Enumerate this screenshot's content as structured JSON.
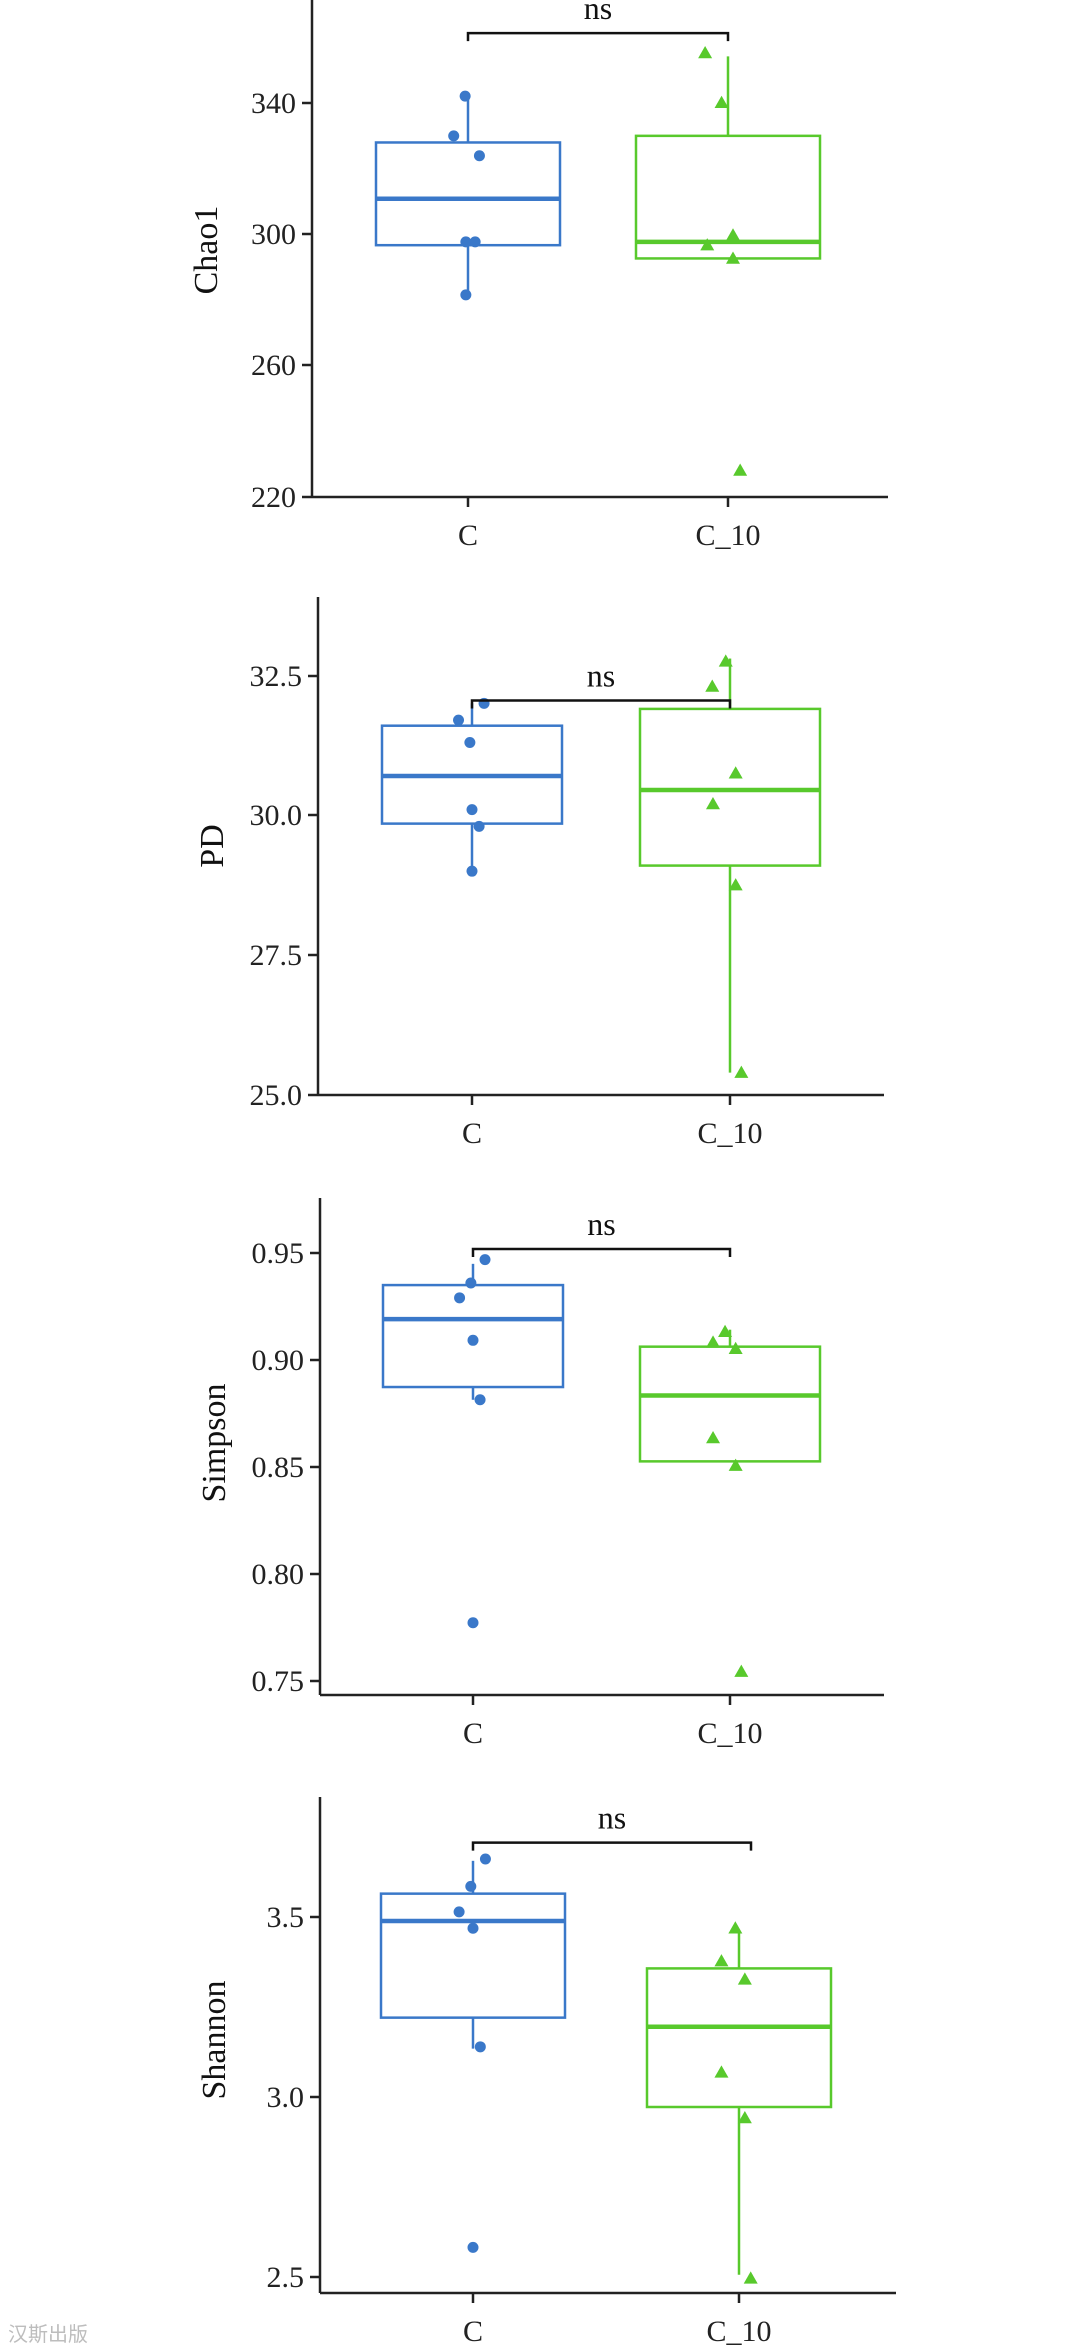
{
  "colors": {
    "C": "#3a78c9",
    "C_10": "#58c92c",
    "axis": "#222222"
  },
  "chart_data": [
    {
      "type": "box",
      "ylabel": "Chao1",
      "categories": [
        "C",
        "C_10"
      ],
      "yticks": [
        220,
        260,
        300,
        340
      ],
      "ylim": [
        218,
        368
      ],
      "boxes": [
        {
          "q1": 294,
          "median": 308,
          "q3": 325,
          "whisker_low": 279,
          "whisker_high": 338
        },
        {
          "q1": 290,
          "median": 295,
          "q3": 327,
          "whisker_low": 290,
          "whisker_high": 351
        }
      ],
      "points": [
        [
          [
            -0.03,
            279
          ],
          [
            -0.03,
            295
          ],
          [
            0.1,
            295
          ],
          [
            -0.2,
            327
          ],
          [
            0.16,
            321
          ],
          [
            -0.04,
            339
          ]
        ],
        [
          [
            -0.32,
            352
          ],
          [
            -0.09,
            337
          ],
          [
            0.07,
            297
          ],
          [
            0.07,
            290
          ],
          [
            -0.29,
            294
          ],
          [
            0.17,
            226
          ]
        ]
      ],
      "significance": {
        "label": "ns",
        "y": 358
      }
    },
    {
      "type": "box",
      "ylabel": "PD",
      "categories": [
        "C",
        "C_10"
      ],
      "yticks": [
        "25.0",
        "27.5",
        "30.0",
        "32.5"
      ],
      "ylim": [
        25.0,
        33.9
      ],
      "boxes": [
        {
          "q1": 29.85,
          "median": 30.7,
          "q3": 31.6,
          "whisker_low": 29.0,
          "whisker_high": 32.0
        },
        {
          "q1": 29.1,
          "median": 30.45,
          "q3": 31.9,
          "whisker_low": 25.4,
          "whisker_high": 32.8
        }
      ],
      "points": [
        [
          [
            -0.19,
            31.7
          ],
          [
            -0.03,
            31.3
          ],
          [
            0.17,
            32.0
          ],
          [
            0.0,
            30.1
          ],
          [
            0.1,
            29.8
          ],
          [
            0.0,
            29.0
          ]
        ],
        [
          [
            -0.25,
            32.3
          ],
          [
            -0.24,
            30.2
          ],
          [
            -0.06,
            32.75
          ],
          [
            0.08,
            30.75
          ],
          [
            0.08,
            28.75
          ],
          [
            0.16,
            25.4
          ]
        ]
      ],
      "significance": {
        "label": "ns",
        "y": 32.05
      }
    },
    {
      "type": "box",
      "ylabel": "Simpson",
      "categories": [
        "C",
        "C_10"
      ],
      "yticks": [
        "0.75",
        "0.80",
        "0.85",
        "0.90",
        "0.95"
      ],
      "ylim": [
        0.743,
        0.977
      ],
      "boxes": [
        {
          "q1": 0.888,
          "median": 0.92,
          "q3": 0.936,
          "whisker_low": 0.882,
          "whisker_high": 0.946
        },
        {
          "q1": 0.853,
          "median": 0.884,
          "q3": 0.907,
          "whisker_low": 0.853,
          "whisker_high": 0.915
        }
      ],
      "points": [
        [
          [
            -0.19,
            0.93
          ],
          [
            -0.03,
            0.937
          ],
          [
            0.17,
            0.948
          ],
          [
            0.0,
            0.91
          ],
          [
            0.1,
            0.882
          ],
          [
            0.0,
            0.777
          ]
        ],
        [
          [
            -0.24,
            0.909
          ],
          [
            -0.07,
            0.914
          ],
          [
            0.08,
            0.906
          ],
          [
            -0.24,
            0.864
          ],
          [
            0.08,
            0.851
          ],
          [
            0.16,
            0.754
          ]
        ]
      ],
      "significance": {
        "label": "ns",
        "y": 0.953
      }
    },
    {
      "type": "box",
      "ylabel": "Shannon",
      "categories": [
        "C",
        "C_10"
      ],
      "yticks": [
        "2.5",
        "3.0",
        "3.5"
      ],
      "ylim": [
        2.47,
        3.83
      ],
      "boxes": [
        {
          "q1": 3.225,
          "median": 3.49,
          "q3": 3.565,
          "whisker_low": 3.14,
          "whisker_high": 3.655
        },
        {
          "q1": 2.98,
          "median": 3.2,
          "q3": 3.36,
          "whisker_low": 2.52,
          "whisker_high": 3.465
        }
      ],
      "points": [
        [
          [
            -0.19,
            3.515
          ],
          [
            -0.03,
            3.585
          ],
          [
            0.17,
            3.66
          ],
          [
            0.0,
            3.47
          ],
          [
            0.1,
            3.145
          ],
          [
            0.0,
            2.595
          ]
        ],
        [
          [
            -0.24,
            3.38
          ],
          [
            -0.05,
            3.47
          ],
          [
            0.08,
            3.33
          ],
          [
            -0.24,
            3.075
          ],
          [
            0.08,
            2.95
          ],
          [
            0.16,
            2.51
          ]
        ]
      ],
      "significance": {
        "label": "ns",
        "y": 3.705
      }
    }
  ],
  "watermark": "汉斯出版"
}
